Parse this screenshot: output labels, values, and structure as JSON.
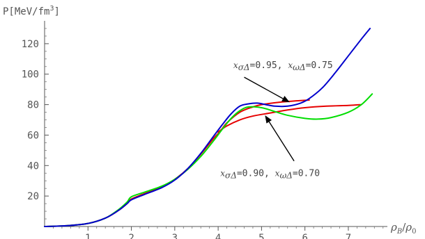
{
  "chart_data": {
    "type": "line",
    "title": "",
    "xlabel": {
      "symbol": "ρ",
      "sub": "B",
      "slash": "/",
      "symbol2": "ρ",
      "sub2": "0"
    },
    "ylabel": {
      "prefix": "P[MeV/fm",
      "sup": "3",
      "suffix": "]"
    },
    "xlim": [
      0,
      7.9
    ],
    "ylim": [
      0,
      135
    ],
    "x_ticks": [
      "1",
      "2",
      "3",
      "4",
      "5",
      "6",
      "7"
    ],
    "y_ticks": [
      "20",
      "40",
      "60",
      "80",
      "100",
      "120"
    ],
    "grid": false,
    "series": [
      {
        "color": "#e60000",
        "x": [
          0,
          0.5,
          1.0,
          1.4,
          1.7,
          1.9,
          2.0,
          2.3,
          2.7,
          3.0,
          3.3,
          3.6,
          3.9,
          4.05,
          4.2,
          4.5,
          4.8,
          5.0,
          5.4,
          5.8,
          6.1
        ],
        "y": [
          0,
          0.5,
          2.0,
          5.5,
          10.5,
          15.0,
          18.0,
          21.5,
          26.0,
          31.0,
          38.0,
          47.5,
          58.0,
          62.5,
          68.0,
          75.0,
          78.5,
          80.0,
          81.5,
          82.5,
          83.0
        ]
      },
      {
        "color": "#e60000",
        "x": [
          4.0,
          4.2,
          4.5,
          4.8,
          5.2,
          5.6,
          6.0,
          6.5,
          7.0,
          7.3
        ],
        "y": [
          62.0,
          66.0,
          70.0,
          72.5,
          74.5,
          76.5,
          78.0,
          79.0,
          79.5,
          80.0
        ]
      },
      {
        "color": "#00dd00",
        "x": [
          0,
          0.5,
          1.0,
          1.4,
          1.7,
          1.9,
          2.0,
          2.3,
          2.7,
          3.0,
          3.3,
          3.6,
          3.9,
          4.1,
          4.3,
          4.5,
          4.7,
          5.0,
          5.3,
          5.6,
          6.0,
          6.3,
          6.6,
          7.0,
          7.3,
          7.55
        ],
        "y": [
          0,
          0.5,
          2.0,
          5.5,
          11.0,
          16.0,
          19.5,
          22.5,
          26.5,
          31.0,
          37.5,
          46.0,
          56.5,
          64.0,
          71.0,
          76.0,
          78.5,
          78.0,
          75.5,
          73.0,
          71.0,
          70.5,
          71.5,
          75.0,
          80.0,
          87.0
        ]
      },
      {
        "color": "#0000cc",
        "x": [
          0,
          0.5,
          1.0,
          1.4,
          1.7,
          1.9,
          2.0,
          2.3,
          2.7,
          3.0,
          3.3,
          3.6,
          3.9,
          4.1,
          4.3,
          4.5,
          4.7,
          4.9,
          5.1,
          5.3,
          5.6,
          5.9,
          6.1,
          6.4,
          6.7,
          7.0,
          7.3,
          7.5
        ],
        "y": [
          0,
          0.5,
          2.0,
          5.5,
          10.5,
          15.0,
          17.5,
          21.0,
          25.5,
          30.5,
          38.0,
          48.0,
          59.5,
          67.0,
          74.0,
          79.0,
          80.5,
          81.0,
          80.0,
          79.0,
          79.0,
          81.0,
          84.0,
          91.0,
          101.0,
          112.0,
          123.0,
          130.0
        ]
      }
    ],
    "annotations": [
      {
        "parts": [
          {
            "t": "x",
            "i": true
          },
          {
            "t": "σΔ",
            "i": true,
            "sub": true
          },
          {
            "t": "=0.95, ",
            "i": false
          },
          {
            "t": "x",
            "i": true
          },
          {
            "t": "ωΔ",
            "i": true,
            "sub": true
          },
          {
            "t": "=0.75",
            "i": false
          }
        ],
        "text_at": [
          4.35,
          104
        ],
        "arrow_from": [
          4.6,
          98
        ],
        "arrow_to": [
          5.65,
          81.5
        ]
      },
      {
        "parts": [
          {
            "t": "x",
            "i": true
          },
          {
            "t": "σΔ",
            "i": true,
            "sub": true
          },
          {
            "t": "=0.90, ",
            "i": false
          },
          {
            "t": "x",
            "i": true
          },
          {
            "t": "ωΔ",
            "i": true,
            "sub": true
          },
          {
            "t": "=0.70",
            "i": false
          }
        ],
        "text_at": [
          4.05,
          33
        ],
        "arrow_from": [
          5.75,
          43
        ],
        "arrow_to": [
          5.08,
          73
        ]
      }
    ]
  }
}
